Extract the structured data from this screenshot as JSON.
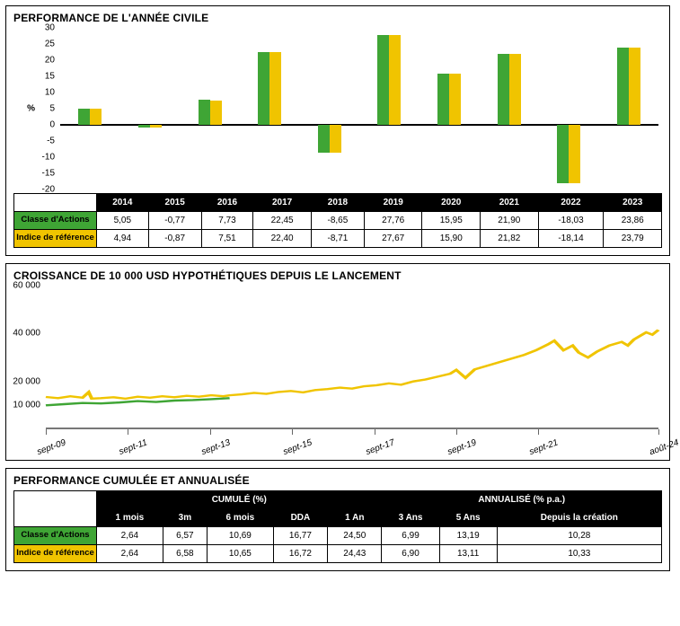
{
  "colors": {
    "series_green": "#3fa535",
    "series_yellow": "#f0c400",
    "black": "#000000",
    "axis_gray": "#777777",
    "bg": "#ffffff"
  },
  "calendar_perf": {
    "title": "PERFORMANCE DE L'ANNÉE CIVILE",
    "ylabel": "%",
    "ylim": [
      -20,
      30
    ],
    "ytick_step": 5,
    "years": [
      "2014",
      "2015",
      "2016",
      "2017",
      "2018",
      "2019",
      "2020",
      "2021",
      "2022",
      "2023"
    ],
    "row_labels": {
      "classe": "Classe d'Actions",
      "indice": "Indice de référence"
    },
    "classe": [
      5.05,
      -0.77,
      7.73,
      22.45,
      -8.65,
      27.76,
      15.95,
      21.9,
      -18.03,
      23.86
    ],
    "indice": [
      4.94,
      -0.87,
      7.51,
      22.4,
      -8.71,
      27.67,
      15.9,
      21.82,
      -18.14,
      23.79
    ],
    "classe_fmt": [
      "5,05",
      "-0,77",
      "7,73",
      "22,45",
      "-8,65",
      "27,76",
      "15,95",
      "21,90",
      "-18,03",
      "23,86"
    ],
    "indice_fmt": [
      "4,94",
      "-0,87",
      "7,51",
      "22,40",
      "-8,71",
      "27,67",
      "15,90",
      "21,82",
      "-18,14",
      "23,79"
    ]
  },
  "growth": {
    "title": "CROISSANCE DE 10 000 USD HYPOTHÉTIQUES DEPUIS LE LANCEMENT",
    "ylim": [
      0,
      60000
    ],
    "yticks": [
      10000,
      20000,
      40000,
      60000
    ],
    "ytick_labels": [
      "10 000",
      "20 000",
      "40 000",
      "60 000"
    ],
    "xticks": [
      0.0,
      0.134,
      0.268,
      0.402,
      0.536,
      0.67,
      0.804,
      1.0
    ],
    "xtick_labels": [
      "sept-09",
      "sept-11",
      "sept-13",
      "sept-15",
      "sept-17",
      "sept-19",
      "sept-21",
      "août-24"
    ],
    "line_green": [
      [
        0,
        10000
      ],
      [
        0.03,
        10500
      ],
      [
        0.06,
        11000
      ],
      [
        0.09,
        10800
      ],
      [
        0.12,
        11200
      ],
      [
        0.15,
        11800
      ],
      [
        0.18,
        11400
      ],
      [
        0.21,
        12000
      ],
      [
        0.24,
        12200
      ],
      [
        0.27,
        12600
      ],
      [
        0.3,
        13000
      ]
    ],
    "line_yellow": [
      [
        0,
        13500
      ],
      [
        0.02,
        13000
      ],
      [
        0.04,
        13800
      ],
      [
        0.06,
        13200
      ],
      [
        0.07,
        15500
      ],
      [
        0.075,
        12800
      ],
      [
        0.09,
        13000
      ],
      [
        0.11,
        13400
      ],
      [
        0.13,
        12800
      ],
      [
        0.15,
        13600
      ],
      [
        0.17,
        13200
      ],
      [
        0.19,
        13800
      ],
      [
        0.21,
        13400
      ],
      [
        0.23,
        14000
      ],
      [
        0.25,
        13600
      ],
      [
        0.27,
        14200
      ],
      [
        0.29,
        13800
      ],
      [
        0.3,
        14200
      ],
      [
        0.32,
        14600
      ],
      [
        0.34,
        15200
      ],
      [
        0.36,
        14800
      ],
      [
        0.38,
        15600
      ],
      [
        0.4,
        16000
      ],
      [
        0.42,
        15400
      ],
      [
        0.44,
        16400
      ],
      [
        0.46,
        16800
      ],
      [
        0.48,
        17400
      ],
      [
        0.5,
        17000
      ],
      [
        0.52,
        18000
      ],
      [
        0.54,
        18400
      ],
      [
        0.56,
        19200
      ],
      [
        0.58,
        18600
      ],
      [
        0.6,
        20000
      ],
      [
        0.62,
        20800
      ],
      [
        0.64,
        22000
      ],
      [
        0.66,
        23200
      ],
      [
        0.67,
        24800
      ],
      [
        0.685,
        21500
      ],
      [
        0.7,
        25000
      ],
      [
        0.72,
        26500
      ],
      [
        0.74,
        28000
      ],
      [
        0.76,
        29500
      ],
      [
        0.78,
        31000
      ],
      [
        0.8,
        33000
      ],
      [
        0.82,
        35500
      ],
      [
        0.83,
        37000
      ],
      [
        0.845,
        33000
      ],
      [
        0.86,
        35000
      ],
      [
        0.87,
        32000
      ],
      [
        0.885,
        30000
      ],
      [
        0.9,
        32500
      ],
      [
        0.92,
        35000
      ],
      [
        0.94,
        36500
      ],
      [
        0.95,
        35000
      ],
      [
        0.96,
        37500
      ],
      [
        0.97,
        39000
      ],
      [
        0.98,
        40500
      ],
      [
        0.99,
        39500
      ],
      [
        1.0,
        41500
      ]
    ]
  },
  "cumul": {
    "title": "PERFORMANCE CUMULÉE ET ANNUALISÉE",
    "group_labels": {
      "cumule": "CUMULÉ (%)",
      "annualise": "ANNUALISÉ (% p.a.)"
    },
    "col_labels": [
      "1 mois",
      "3m",
      "6 mois",
      "DDA",
      "1 An",
      "3 Ans",
      "5 Ans",
      "Depuis la création"
    ],
    "row_labels": {
      "classe": "Classe d'Actions",
      "indice": "Indice de référence"
    },
    "classe_fmt": [
      "2,64",
      "6,57",
      "10,69",
      "16,77",
      "24,50",
      "6,99",
      "13,19",
      "10,28"
    ],
    "indice_fmt": [
      "2,64",
      "6,58",
      "10,65",
      "16,72",
      "24,43",
      "6,90",
      "13,11",
      "10,33"
    ]
  }
}
